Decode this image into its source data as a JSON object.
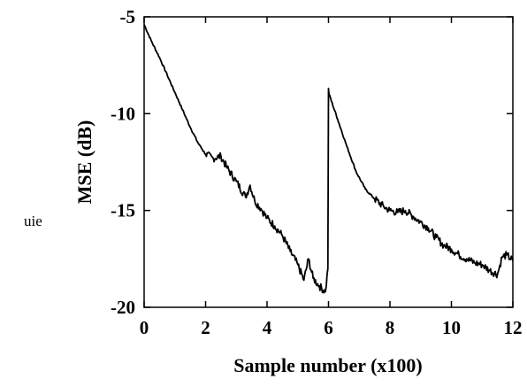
{
  "side_text": "uie",
  "chart_data": {
    "type": "line",
    "title": "",
    "xlabel": "Sample number (x100)",
    "ylabel": "MSE (dB)",
    "xlim": [
      0,
      12
    ],
    "ylim": [
      -20,
      -5
    ],
    "xticks": [
      0,
      2,
      4,
      6,
      8,
      10,
      12
    ],
    "yticks": [
      -5,
      -10,
      -15,
      -20
    ],
    "grid": false,
    "legend": "none",
    "line_color": "#000000",
    "series": [
      {
        "x": [
          0,
          0.25,
          0.5,
          0.75,
          1.0,
          1.25,
          1.5,
          1.75,
          2.0,
          2.25,
          2.5,
          2.7,
          3.0,
          3.3,
          3.45,
          3.6,
          3.8,
          4.0,
          4.25,
          4.5,
          4.75,
          5.0,
          5.2,
          5.35,
          5.5,
          5.7,
          5.9,
          5.98,
          6.0,
          6.02,
          6.3,
          6.6,
          6.9,
          7.2,
          7.5,
          7.8,
          8.0,
          8.25,
          8.5,
          8.75,
          9.0,
          9.25,
          9.5,
          9.75,
          10.0,
          10.25,
          10.5,
          10.75,
          11.0,
          11.25,
          11.5,
          11.65,
          11.8,
          12.0
        ],
        "y": [
          -5.4,
          -6.3,
          -7.1,
          -8.0,
          -8.9,
          -9.8,
          -10.7,
          -11.5,
          -12.1,
          -12.3,
          -12.2,
          -12.8,
          -13.5,
          -14.3,
          -13.7,
          -14.5,
          -14.9,
          -15.4,
          -15.8,
          -16.3,
          -17.1,
          -17.8,
          -18.6,
          -17.5,
          -18.5,
          -18.9,
          -19.2,
          -18.0,
          -8.7,
          -9.0,
          -10.3,
          -11.7,
          -13.0,
          -13.9,
          -14.4,
          -14.8,
          -15.0,
          -15.1,
          -15.0,
          -15.3,
          -15.6,
          -15.9,
          -16.4,
          -16.8,
          -17.0,
          -17.3,
          -17.5,
          -17.7,
          -17.8,
          -18.1,
          -18.3,
          -17.4,
          -17.3,
          -17.6
        ]
      }
    ]
  }
}
